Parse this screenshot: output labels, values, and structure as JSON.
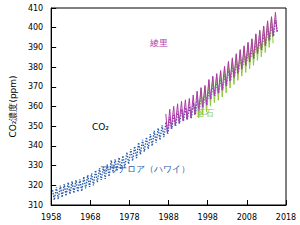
{
  "chart_data": {
    "type": "line",
    "y_label": "CO₂濃度(ppm)",
    "xlim": [
      1958,
      2018
    ],
    "xticks": [
      1958,
      1968,
      1978,
      1988,
      1998,
      2008,
      2018
    ],
    "ylim": [
      310,
      410
    ],
    "yticks": [
      310,
      320,
      330,
      340,
      350,
      360,
      370,
      380,
      390,
      400,
      410
    ],
    "grid": false,
    "annotations": [
      {
        "text": "CO₂",
        "color": "#000000"
      }
    ],
    "series": [
      {
        "name": "マウナロア（ハワイ）",
        "color": "#2a5caa",
        "line_style": "dotted",
        "x": [
          1958.35,
          1958.8,
          1959.35,
          1959.8,
          1960.35,
          1960.8,
          1961.35,
          1961.8,
          1962.35,
          1962.8,
          1963.35,
          1963.8,
          1964.35,
          1964.8,
          1965.35,
          1965.8,
          1966.35,
          1966.8,
          1967.35,
          1967.8,
          1968.35,
          1968.8,
          1969.35,
          1969.8,
          1970.35,
          1970.8,
          1971.35,
          1971.8,
          1972.35,
          1972.8,
          1973.35,
          1973.8,
          1974.35,
          1974.8,
          1975.35,
          1975.8,
          1976.35,
          1976.8,
          1977.35,
          1977.8,
          1978.35,
          1978.8,
          1979.35,
          1979.8,
          1980.35,
          1980.8,
          1981.35,
          1981.8,
          1982.35,
          1982.8,
          1983.35,
          1983.8,
          1984.35,
          1984.8,
          1985.35,
          1985.8,
          1986.35,
          1986.8,
          1987.35,
          1987.8,
          1988.35,
          1988.8,
          1989.35,
          1989.8,
          1990.35,
          1990.8,
          1991.35,
          1991.8,
          1992.35,
          1992.8,
          1993.35,
          1993.8,
          1994.35,
          1994.8,
          1995.35,
          1995.8,
          1996.35,
          1996.8,
          1997.35,
          1997.8,
          1998.35,
          1998.8,
          1999.35,
          1999.8,
          2000.35,
          2000.8,
          2001.35,
          2001.8,
          2002.35,
          2002.8,
          2003.35,
          2003.8,
          2004.35,
          2004.8,
          2005.35,
          2005.8,
          2006.35,
          2006.8,
          2007.35,
          2007.8,
          2008.35,
          2008.8,
          2009.35,
          2009.8,
          2010.35,
          2010.8,
          2011.35,
          2011.8,
          2012.35,
          2012.8,
          2013.35,
          2013.8,
          2014.35,
          2014.8,
          2015.35,
          2015.8
        ],
        "values": [
          317.5,
          312.5,
          319.0,
          313.0,
          319.9,
          313.9,
          320.6,
          314.6,
          321.5,
          315.5,
          322.0,
          316.0,
          322.6,
          316.6,
          323.0,
          317.0,
          324.4,
          318.4,
          325.2,
          319.2,
          326.0,
          320.0,
          327.6,
          321.6,
          328.7,
          322.7,
          329.3,
          323.3,
          330.5,
          324.5,
          332.7,
          326.7,
          333.2,
          327.2,
          334.1,
          328.1,
          335.0,
          329.0,
          336.8,
          330.8,
          338.4,
          332.4,
          339.8,
          333.8,
          341.7,
          335.7,
          343.1,
          337.1,
          344.4,
          338.4,
          346.0,
          340.0,
          347.6,
          341.6,
          349.0,
          343.0,
          350.4,
          344.4,
          352.2,
          346.2,
          354.6,
          348.6,
          356.1,
          350.1,
          357.4,
          351.4,
          358.6,
          352.6,
          359.4,
          353.4,
          360.1,
          354.1,
          361.8,
          355.8,
          363.8,
          357.8,
          365.6,
          359.6,
          366.7,
          360.7,
          369.7,
          363.7,
          371.4,
          365.4,
          372.7,
          366.7,
          374.3,
          368.3,
          376.4,
          370.4,
          378.9,
          372.9,
          380.7,
          374.7,
          382.8,
          376.8,
          384.9,
          378.9,
          386.8,
          380.8,
          388.6,
          382.6,
          390.4,
          384.4,
          392.9,
          386.9,
          394.7,
          388.7,
          396.9,
          390.9,
          399.5,
          393.5,
          401.6,
          395.6,
          403.8,
          397.8
        ]
      },
      {
        "name": "落石",
        "color": "#8dc63f",
        "line_style": "solid",
        "x": [
          1995.3,
          1995.7,
          1996.3,
          1996.7,
          1997.3,
          1997.7,
          1998.3,
          1998.7,
          1999.3,
          1999.7,
          2000.3,
          2000.7,
          2001.3,
          2001.7,
          2002.3,
          2002.7,
          2003.3,
          2003.7,
          2004.3,
          2004.7,
          2005.3,
          2005.7,
          2006.3,
          2006.7,
          2007.3,
          2007.7,
          2008.3,
          2008.7,
          2009.3,
          2009.7,
          2010.3,
          2010.7,
          2011.3,
          2011.7,
          2012.3,
          2012.7,
          2013.3,
          2013.7,
          2014.3,
          2014.7
        ],
        "values": [
          367.3,
          354.3,
          369.1,
          356.1,
          370.2,
          357.2,
          373.2,
          360.2,
          374.9,
          361.9,
          376.2,
          363.2,
          377.8,
          364.8,
          379.9,
          366.9,
          382.4,
          369.4,
          384.2,
          371.2,
          386.3,
          373.3,
          388.4,
          375.4,
          390.3,
          377.3,
          392.1,
          379.1,
          393.9,
          380.9,
          396.4,
          383.4,
          398.2,
          385.2,
          400.4,
          387.4,
          403.0,
          390.0,
          405.1,
          392.1
        ]
      },
      {
        "name": "綾里",
        "color": "#b03aa8",
        "line_style": "solid",
        "x": [
          1987.3,
          1987.7,
          1988.3,
          1988.7,
          1989.3,
          1989.7,
          1990.3,
          1990.7,
          1991.3,
          1991.7,
          1992.3,
          1992.7,
          1993.3,
          1993.7,
          1994.3,
          1994.7,
          1995.3,
          1995.7,
          1996.3,
          1996.7,
          1997.3,
          1997.7,
          1998.3,
          1998.7,
          1999.3,
          1999.7,
          2000.3,
          2000.7,
          2001.3,
          2001.7,
          2002.3,
          2002.7,
          2003.3,
          2003.7,
          2004.3,
          2004.7,
          2005.3,
          2005.7,
          2006.3,
          2006.7,
          2007.3,
          2007.7,
          2008.3,
          2008.7,
          2009.3,
          2009.7,
          2010.3,
          2010.7,
          2011.3,
          2011.7,
          2012.3,
          2012.7,
          2013.3,
          2013.7,
          2014.3,
          2014.7,
          2015.3,
          2015.7
        ],
        "values": [
          356.2,
          346.2,
          358.6,
          348.6,
          360.1,
          350.1,
          361.4,
          351.4,
          362.6,
          352.6,
          363.4,
          353.4,
          364.1,
          354.1,
          365.8,
          355.8,
          367.8,
          357.8,
          369.6,
          359.6,
          370.7,
          360.7,
          373.7,
          363.7,
          375.4,
          365.4,
          376.7,
          366.7,
          378.3,
          368.3,
          380.4,
          370.4,
          382.9,
          372.9,
          384.7,
          374.7,
          386.8,
          376.8,
          388.9,
          378.9,
          390.8,
          380.8,
          392.6,
          382.6,
          394.4,
          384.4,
          396.9,
          386.9,
          398.7,
          388.7,
          400.9,
          390.9,
          403.5,
          393.5,
          405.6,
          395.6,
          407.8,
          397.8
        ]
      }
    ]
  }
}
